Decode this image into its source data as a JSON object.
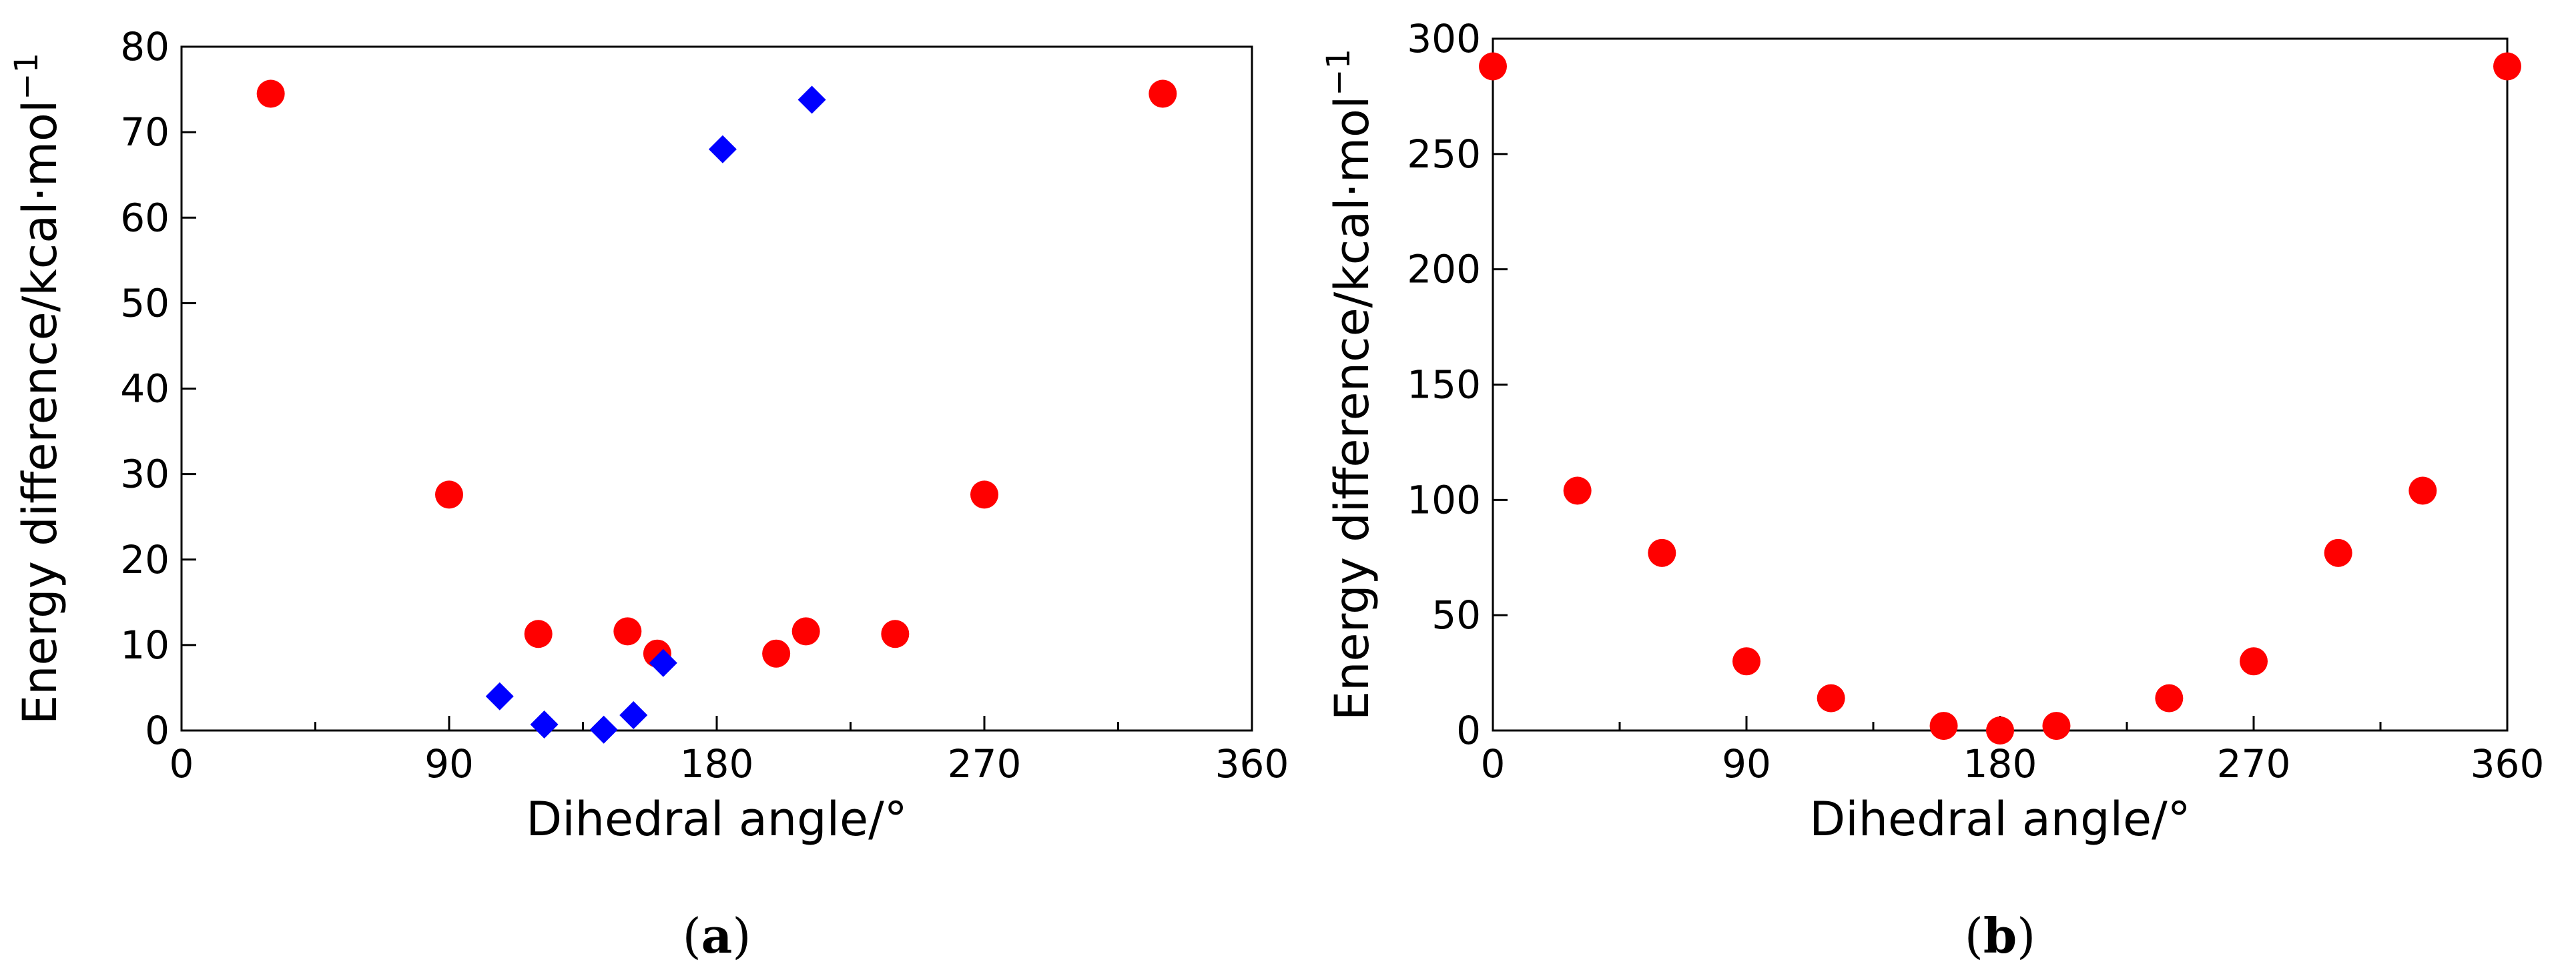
{
  "chart_data": [
    {
      "type": "scatter",
      "panel_label": "a",
      "xlabel": "Dihedral angle/°",
      "ylabel": "Energy difference/kcal·mol",
      "ylabel_sup": "−1",
      "xlim": [
        0,
        360
      ],
      "ylim": [
        0,
        80
      ],
      "xticks": [
        0,
        90,
        180,
        270,
        360
      ],
      "yticks": [
        0,
        10,
        20,
        30,
        40,
        50,
        60,
        70,
        80
      ],
      "series": [
        {
          "marker": "circle",
          "color": "#ff0000",
          "points": [
            [
              30,
              74.5
            ],
            [
              90,
              27.6
            ],
            [
              120,
              11.3
            ],
            [
              150,
              11.6
            ],
            [
              160,
              9.0
            ],
            [
              200,
              9.0
            ],
            [
              210,
              11.6
            ],
            [
              240,
              11.3
            ],
            [
              270,
              27.6
            ],
            [
              330,
              74.5
            ]
          ]
        },
        {
          "marker": "diamond",
          "color": "#0000ff",
          "points": [
            [
              107,
              4.0
            ],
            [
              122,
              0.7
            ],
            [
              142,
              0.1
            ],
            [
              152,
              1.8
            ],
            [
              162,
              7.9
            ],
            [
              182,
              68.0
            ],
            [
              212,
              73.8
            ]
          ]
        }
      ]
    },
    {
      "type": "scatter",
      "panel_label": "b",
      "xlabel": "Dihedral angle/°",
      "ylabel": "Energy difference/kcal·mol",
      "ylabel_sup": "−1",
      "xlim": [
        0,
        360
      ],
      "ylim": [
        0,
        300
      ],
      "xticks": [
        0,
        90,
        180,
        270,
        360
      ],
      "yticks": [
        0,
        50,
        100,
        150,
        200,
        250,
        300
      ],
      "series": [
        {
          "marker": "circle",
          "color": "#ff0000",
          "points": [
            [
              0,
              288
            ],
            [
              30,
              104
            ],
            [
              60,
              77
            ],
            [
              90,
              30
            ],
            [
              120,
              14
            ],
            [
              160,
              2
            ],
            [
              180,
              0
            ],
            [
              200,
              2
            ],
            [
              240,
              14
            ],
            [
              270,
              30
            ],
            [
              300,
              77
            ],
            [
              330,
              104
            ],
            [
              360,
              288
            ]
          ]
        }
      ]
    }
  ]
}
